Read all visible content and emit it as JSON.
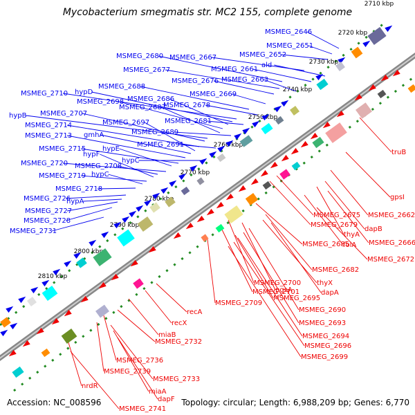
{
  "title": "Mycobacterium smegmatis str. MC2 155, complete genome",
  "accession": "Accession: NC_008596",
  "topology": "Topology: circular; Length: 6,988,209 bp; Genes: 6,770",
  "colors": {
    "forward_strand": "#0000ee",
    "reverse_strand": "#ee0000",
    "backbone": "#777777",
    "tick": "#228b22"
  },
  "kbp_ticks": [
    "2710 kbp",
    "2720 kbp",
    "2730 kbp",
    "2740 kbp",
    "2750 kbp",
    "2760 kbp",
    "2770 kbp",
    "2780 kbp",
    "2790 kbp",
    "2800 kbp",
    "2810 kbp"
  ],
  "forward_genes": [
    "MSMEG_2646",
    "MSMEG_2651",
    "MSMEG_2652",
    "MSMEG_2667",
    "MSMEG_2680",
    "ald",
    "MSMEG_2677",
    "MSMEG_2661",
    "MSMEG_2663",
    "MSMEG_2676",
    "MSMEG_2688",
    "MSMEG_2669",
    "MSMEG_2710",
    "hypD",
    "MSMEG_2686",
    "MSMEG_2698",
    "MSMEG_2687",
    "MSMEG_2678",
    "hypB",
    "MSMEG_2707",
    "MSMEG_2681",
    "MSMEG_2714",
    "MSMEG_2697",
    "gmhA",
    "MSMEG_2713",
    "MSMEG_2689",
    "MSMEG_2715",
    "hypE",
    "MSMEG_2691",
    "MSMEG_2720",
    "MSMEG_2708",
    "hypF",
    "hypC",
    "MSMEG_2719",
    "hypC",
    "MSMEG_2718",
    "MSMEG_2726",
    "hypA",
    "MSMEG_2727",
    "MSMEG_2728",
    "MSMEG_2731"
  ],
  "reverse_genes": [
    "truB",
    "gpsI",
    "MSMEG_2662",
    "MSMEG_2675",
    "dapB",
    "MSMEG_2679",
    "thyA",
    "MSMEG_2666",
    "folA",
    "MSMEG_2685",
    "MSMEG_2672",
    "MSMEG_2682",
    "MSMEG_2700",
    "thyX",
    "pgsA",
    "MSMEG_2701",
    "dapA",
    "MSMEG_2709",
    "MSMEG_2695",
    "recA",
    "MSMEG_2690",
    "recX",
    "MSMEG_2693",
    "miaB",
    "MSMEG_2694",
    "MSMEG_2732",
    "MSMEG_2696",
    "MSMEG_2699",
    "MSMEG_2736",
    "MSMEG_2739",
    "MSMEG_2733",
    "nrdR",
    "miaA",
    "dapF",
    "MSMEG_2741"
  ]
}
